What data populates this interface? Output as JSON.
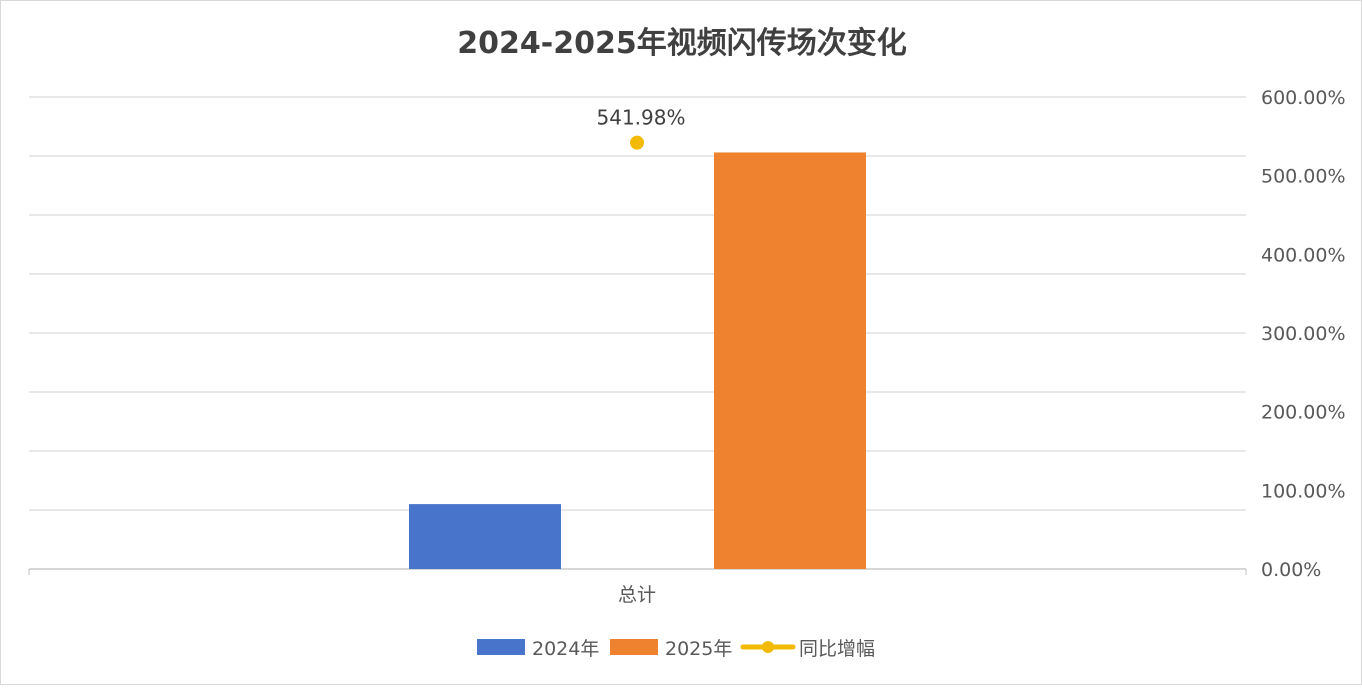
{
  "chart_data": {
    "type": "bar",
    "title": "2024-2025年视频闪传场次变化",
    "categories": [
      "总计"
    ],
    "series": [
      {
        "name": "2024年",
        "type": "bar",
        "axis": "primary",
        "values": [
          1.1
        ],
        "color": "#4874CB"
      },
      {
        "name": "2025年",
        "type": "bar",
        "axis": "primary",
        "values": [
          7.06
        ],
        "color": "#EE822F"
      },
      {
        "name": "同比增幅",
        "type": "line",
        "axis": "secondary",
        "values": [
          541.98
        ],
        "color": "#F2BA02"
      }
    ],
    "data_labels": [
      "541.98%"
    ],
    "primary_axis": {
      "visible": false,
      "ylim": [
        0,
        8
      ]
    },
    "secondary_axis": {
      "ylim": [
        0,
        600
      ],
      "ticks": [
        "0.00%",
        "100.00%",
        "200.00%",
        "300.00%",
        "400.00%",
        "500.00%",
        "600.00%"
      ],
      "tick_values": [
        0,
        100,
        200,
        300,
        400,
        500,
        600
      ]
    },
    "grid": true,
    "legend_position": "bottom",
    "legend": [
      "2024年",
      "2025年",
      "同比增幅"
    ]
  }
}
